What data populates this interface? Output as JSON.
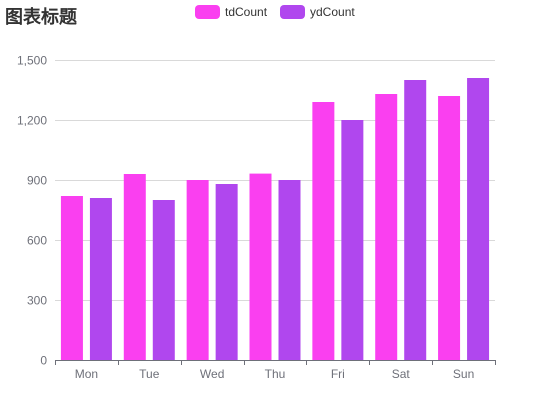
{
  "chart_data": {
    "type": "bar",
    "title": "图表标题",
    "categories": [
      "Mon",
      "Tue",
      "Wed",
      "Thu",
      "Fri",
      "Sat",
      "Sun"
    ],
    "series": [
      {
        "name": "tdCount",
        "color": "#fa3ff0",
        "values": [
          820,
          930,
          900,
          932,
          1290,
          1330,
          1320
        ]
      },
      {
        "name": "ydCount",
        "color": "#b047ee",
        "values": [
          810,
          800,
          880,
          900,
          1200,
          1400,
          1410
        ]
      }
    ],
    "y_ticks": [
      "0",
      "300",
      "600",
      "900",
      "1,200",
      "1,500"
    ],
    "ylim": [
      0,
      1500
    ],
    "grid": true,
    "legend_position": "top-center"
  }
}
